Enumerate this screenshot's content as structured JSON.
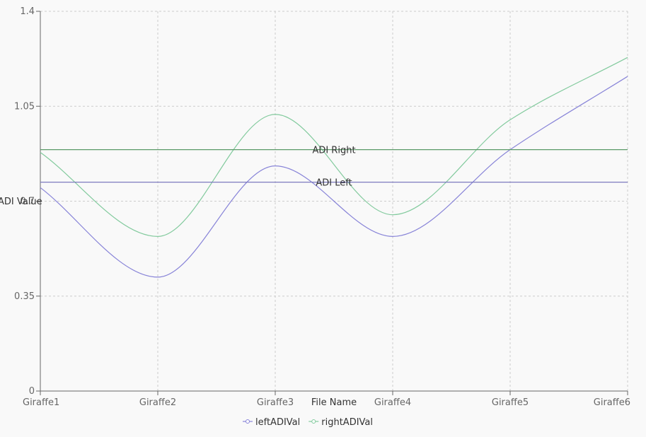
{
  "chart_data": {
    "type": "line",
    "xlabel": "File Name",
    "ylabel": "ADI Value",
    "ylim": [
      0,
      1.4
    ],
    "yticks": [
      0,
      0.35,
      0.7,
      1.05,
      1.4
    ],
    "ytick_labels": [
      "0",
      "0.35",
      "0.7",
      "1.05",
      "1.4"
    ],
    "categories": [
      "Giraffe1",
      "Giraffe2",
      "Giraffe3",
      "Giraffe4",
      "Giraffe5",
      "Giraffe6"
    ],
    "series": [
      {
        "name": "leftADIVal",
        "color": "#8884d8",
        "values": [
          0.75,
          0.42,
          0.83,
          0.57,
          0.89,
          1.16
        ]
      },
      {
        "name": "rightADIVal",
        "color": "#82ca9d",
        "values": [
          0.88,
          0.57,
          1.02,
          0.65,
          1.0,
          1.23
        ]
      }
    ],
    "reference_lines": [
      {
        "label": "ADI Right",
        "value": 0.89,
        "color": "#5b9a68"
      },
      {
        "label": "ADI Left",
        "value": 0.77,
        "color": "#7d7bbf"
      }
    ],
    "grid": true,
    "legend_position": "bottom-center"
  }
}
